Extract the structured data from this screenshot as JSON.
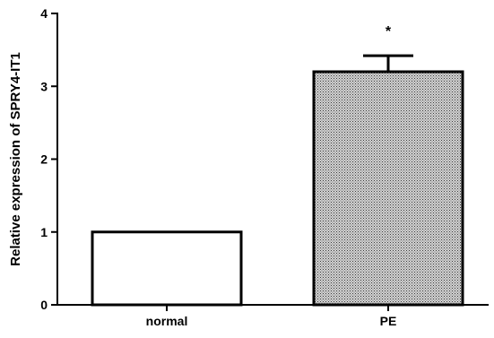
{
  "chart_data": {
    "type": "bar",
    "categories": [
      "normal",
      "PE"
    ],
    "values": [
      1.0,
      3.2
    ],
    "error_upper": [
      0.0,
      0.22
    ],
    "annotations": [
      "",
      "*"
    ],
    "title": "",
    "xlabel": "",
    "ylabel": "Relative expression of SPRY4-IT1",
    "ylim": [
      0,
      4
    ],
    "yticks": [
      "0",
      "1",
      "2",
      "3",
      "4"
    ],
    "grid": false,
    "legend": "none",
    "bar_fills": [
      "#ffffff",
      "#aaaaaa"
    ],
    "bar_patterns": [
      "none",
      "dotted"
    ]
  }
}
